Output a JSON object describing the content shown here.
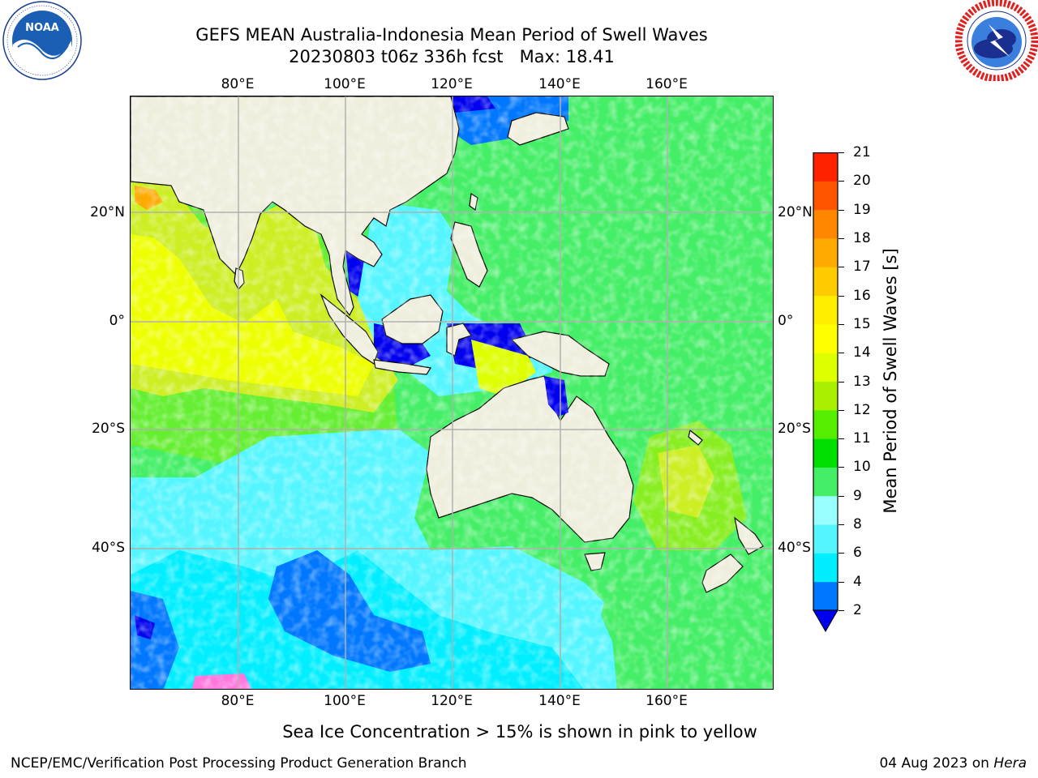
{
  "header": {
    "title_line1": "GEFS MEAN Australia-Indonesia Mean Period of Swell Waves",
    "title_line2": "20230803 t06z 336h fcst   Max: 18.41"
  },
  "logos": {
    "left": "noaa-logo",
    "right": "nws-logo"
  },
  "map": {
    "lon_labels": [
      "80°E",
      "100°E",
      "120°E",
      "140°E",
      "160°E"
    ],
    "lat_labels": [
      "20°N",
      "0°",
      "20°S",
      "40°S"
    ],
    "land_color": "#efeedd",
    "grid_color": "#b0b0b0"
  },
  "colorbar": {
    "label": "Mean Period of Swell Waves [s]",
    "ticks": [
      "21",
      "20",
      "19",
      "18",
      "17",
      "16",
      "15",
      "14",
      "13",
      "12",
      "11",
      "10",
      "9",
      "8",
      "6",
      "4",
      "2"
    ],
    "colors": [
      "#0000ee",
      "#0077ff",
      "#00eeff",
      "#55f5ff",
      "#99ffff",
      "#44ee66",
      "#00dd00",
      "#55ee00",
      "#aaee00",
      "#ddff00",
      "#ffff00",
      "#ffee00",
      "#ffcc00",
      "#ffaa00",
      "#ff8800",
      "#ff5500",
      "#ff2200",
      "#ff0000"
    ]
  },
  "footer": {
    "ice_note": "Sea Ice Concentration > 15% is shown in pink to yellow",
    "credit": "NCEP/EMC/Verification Post Processing Product Generation Branch",
    "date": "04 Aug 2023 on ",
    "host": "Hera"
  }
}
